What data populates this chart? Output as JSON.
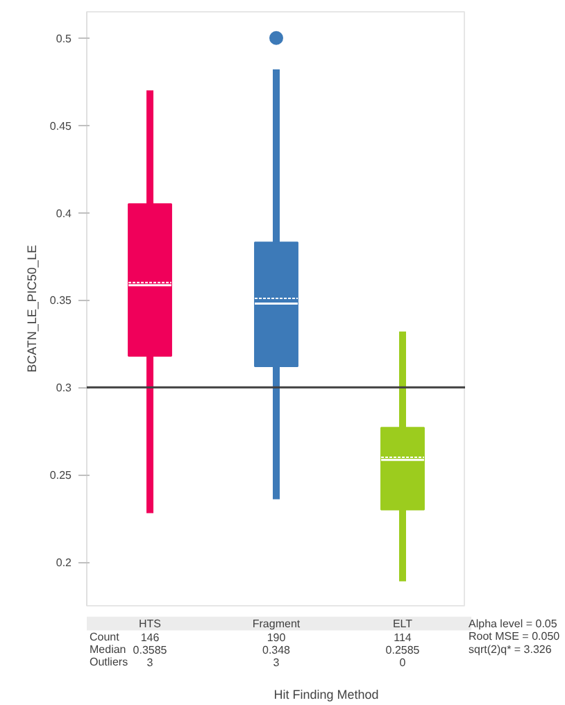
{
  "chart_data": [
    {
      "type": "box",
      "ylabel": "BCATN_LE_PIC50_LE",
      "xlabel": "Hit Finding Method",
      "categories": [
        "HTS",
        "Fragment",
        "ELT"
      ],
      "colors": [
        "#f0005a",
        "#3d7ab8",
        "#9ccc1e"
      ],
      "boxes": [
        {
          "low": 0.228,
          "q1": 0.318,
          "median": 0.3585,
          "q3": 0.405,
          "high": 0.47,
          "mean": 0.36
        },
        {
          "low": 0.236,
          "q1": 0.312,
          "median": 0.348,
          "q3": 0.383,
          "high": 0.482,
          "mean": 0.351,
          "outliers": [
            0.5
          ]
        },
        {
          "low": 0.189,
          "q1": 0.23,
          "median": 0.2585,
          "q3": 0.277,
          "high": 0.332,
          "mean": 0.26
        }
      ],
      "ylim": [
        0.175,
        0.515
      ],
      "yticks": [
        0.2,
        0.25,
        0.3,
        0.35,
        0.4,
        0.45,
        0.5
      ],
      "ref_lines": [
        {
          "axis": "y",
          "value": 0.3,
          "color": "#404040"
        }
      ],
      "annotations": [
        "Count",
        "146",
        "190",
        "114",
        "Median",
        "0.3585",
        "0.348",
        "0.2585",
        "Outliers",
        "3",
        "3",
        "0"
      ],
      "grid": false,
      "tick_labels": "y"
    },
    {
      "type": "other",
      "annotations": [
        "Alpha level = 0.05",
        "Root MSE = 0.050",
        "sqrt(2)q* = 3.326"
      ]
    }
  ]
}
